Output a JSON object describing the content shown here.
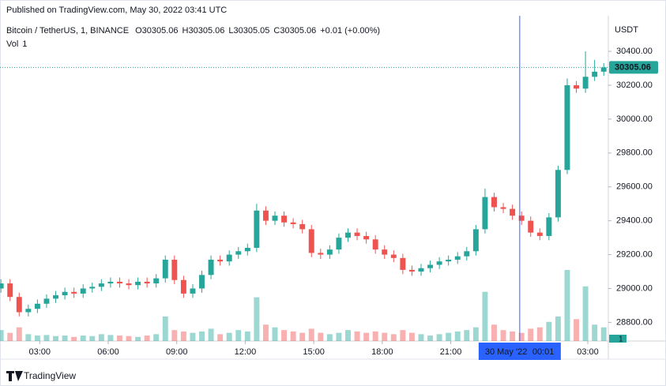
{
  "header": {
    "published": "Published on TradingView.com, May 30, 2022 03:41 UTC",
    "brand": "TradingView"
  },
  "chart_data": {
    "type": "candlestick",
    "symbol": "Bitcoin / TetherUS, 1, BINANCE",
    "status": {
      "o_label": "O",
      "open": 30305.06,
      "h_label": "H",
      "high": 30305.06,
      "l_label": "L",
      "low": 30305.05,
      "c_label": "C",
      "close": 30305.06,
      "change": "+0.01 (+0.00%)",
      "vol_label": "Vol",
      "vol": 1
    },
    "currency": "USDT",
    "up_color": "#26a69a",
    "down_color": "#ef5350",
    "x": [
      1.3,
      1.7,
      2.1,
      2.5,
      2.9,
      3.3,
      3.7,
      4.1,
      4.5,
      4.9,
      5.3,
      5.7,
      6.1,
      6.5,
      6.9,
      7.3,
      7.7,
      8.1,
      8.5,
      8.9,
      9.3,
      9.7,
      10.1,
      10.5,
      10.9,
      11.3,
      11.7,
      12.1,
      12.5,
      12.9,
      13.3,
      13.7,
      14.1,
      14.5,
      14.9,
      15.3,
      15.7,
      16.1,
      16.5,
      16.9,
      17.3,
      17.7,
      18.1,
      18.5,
      18.9,
      19.3,
      19.7,
      20.1,
      20.5,
      20.9,
      21.3,
      21.7,
      22.1,
      22.5,
      22.9,
      23.3,
      23.7,
      24.1,
      24.5,
      24.9,
      25.3,
      25.7,
      26.1,
      26.5,
      26.9,
      27.3,
      27.7
    ],
    "open": [
      29000,
      29030,
      28950,
      28860,
      28880,
      28910,
      28940,
      28960,
      28980,
      28970,
      29000,
      29010,
      29030,
      29040,
      29030,
      29020,
      29040,
      29030,
      29060,
      29170,
      29050,
      28970,
      29000,
      29080,
      29170,
      29160,
      29200,
      29220,
      29240,
      29460,
      29400,
      29430,
      29390,
      29380,
      29350,
      29210,
      29200,
      29230,
      29300,
      29330,
      29310,
      29290,
      29230,
      29200,
      29180,
      29110,
      29100,
      29120,
      29140,
      29160,
      29170,
      29190,
      29220,
      29350,
      29540,
      29480,
      29470,
      29430,
      29400,
      29330,
      29310,
      29420,
      29700,
      30200,
      30180,
      30250,
      30280
    ],
    "high": [
      29055,
      29055,
      28975,
      28905,
      28935,
      28965,
      28985,
      29005,
      29005,
      29025,
      29035,
      29055,
      29065,
      29065,
      29055,
      29065,
      29065,
      29085,
      29195,
      29195,
      29075,
      29025,
      29105,
      29195,
      29195,
      29225,
      29245,
      29265,
      29500,
      29485,
      29455,
      29455,
      29415,
      29405,
      29375,
      29235,
      29255,
      29325,
      29355,
      29355,
      29335,
      29315,
      29255,
      29225,
      29205,
      29135,
      29145,
      29165,
      29185,
      29195,
      29215,
      29245,
      29375,
      29590,
      29565,
      29505,
      29495,
      29455,
      29425,
      29355,
      29445,
      29725,
      30240,
      30225,
      30400,
      30350,
      30330
    ],
    "low": [
      28975,
      28925,
      28835,
      28835,
      28855,
      28885,
      28915,
      28935,
      28945,
      28945,
      28975,
      28985,
      29005,
      29005,
      28995,
      28995,
      29005,
      29005,
      29035,
      29025,
      28945,
      28945,
      28975,
      29055,
      29135,
      29135,
      29175,
      29195,
      29215,
      29375,
      29375,
      29365,
      29355,
      29325,
      29185,
      29175,
      29175,
      29205,
      29275,
      29285,
      29265,
      29205,
      29175,
      29155,
      29085,
      29075,
      29075,
      29095,
      29115,
      29135,
      29145,
      29165,
      29195,
      29325,
      29455,
      29445,
      29405,
      29375,
      29305,
      29285,
      29285,
      29395,
      29675,
      30155,
      30155,
      30225,
      30255
    ],
    "close": [
      29030,
      28950,
      28860,
      28880,
      28910,
      28940,
      28960,
      28980,
      28970,
      29000,
      29010,
      29030,
      29040,
      29030,
      29020,
      29040,
      29030,
      29060,
      29170,
      29050,
      28970,
      29000,
      29080,
      29170,
      29160,
      29200,
      29220,
      29240,
      29460,
      29400,
      29430,
      29390,
      29380,
      29350,
      29210,
      29200,
      29230,
      29300,
      29330,
      29310,
      29290,
      29230,
      29200,
      29180,
      29110,
      29100,
      29120,
      29140,
      29160,
      29170,
      29190,
      29220,
      29350,
      29540,
      29480,
      29470,
      29430,
      29400,
      29330,
      29310,
      29420,
      29700,
      30200,
      30180,
      30250,
      30280,
      30305.06
    ],
    "volume": [
      40,
      30,
      50,
      25,
      20,
      22,
      18,
      20,
      15,
      20,
      18,
      25,
      22,
      20,
      18,
      15,
      20,
      25,
      90,
      40,
      35,
      30,
      35,
      45,
      25,
      30,
      40,
      35,
      160,
      60,
      50,
      40,
      35,
      30,
      45,
      30,
      25,
      30,
      40,
      35,
      30,
      35,
      30,
      25,
      40,
      30,
      25,
      20,
      25,
      30,
      35,
      40,
      50,
      180,
      60,
      40,
      35,
      30,
      45,
      50,
      70,
      90,
      260,
      80,
      200,
      60,
      50
    ],
    "xlim": [
      1.26,
      27.9
    ],
    "ylim": [
      28690,
      30610
    ],
    "xticks": [
      {
        "value": 3,
        "label": "03:00"
      },
      {
        "value": 6,
        "label": "06:00"
      },
      {
        "value": 9,
        "label": "09:00"
      },
      {
        "value": 12,
        "label": "12:00"
      },
      {
        "value": 15,
        "label": "15:00"
      },
      {
        "value": 18,
        "label": "18:00"
      },
      {
        "value": 21,
        "label": "21:00"
      },
      {
        "value": 27,
        "label": "03:00"
      }
    ],
    "yticks": [
      {
        "value": 28800,
        "label": "28800.00"
      },
      {
        "value": 29000,
        "label": "29000.00"
      },
      {
        "value": 29200,
        "label": "29200.00"
      },
      {
        "value": 29400,
        "label": "29400.00"
      },
      {
        "value": 29600,
        "label": "29600.00"
      },
      {
        "value": 29800,
        "label": "29800.00"
      },
      {
        "value": 30000,
        "label": "30000.00"
      },
      {
        "value": 30200,
        "label": "30200.00"
      },
      {
        "value": 30400,
        "label": "30400.00"
      }
    ],
    "crosshair": {
      "x": 24.02,
      "date": "30 May '22",
      "time": "00:01"
    }
  }
}
